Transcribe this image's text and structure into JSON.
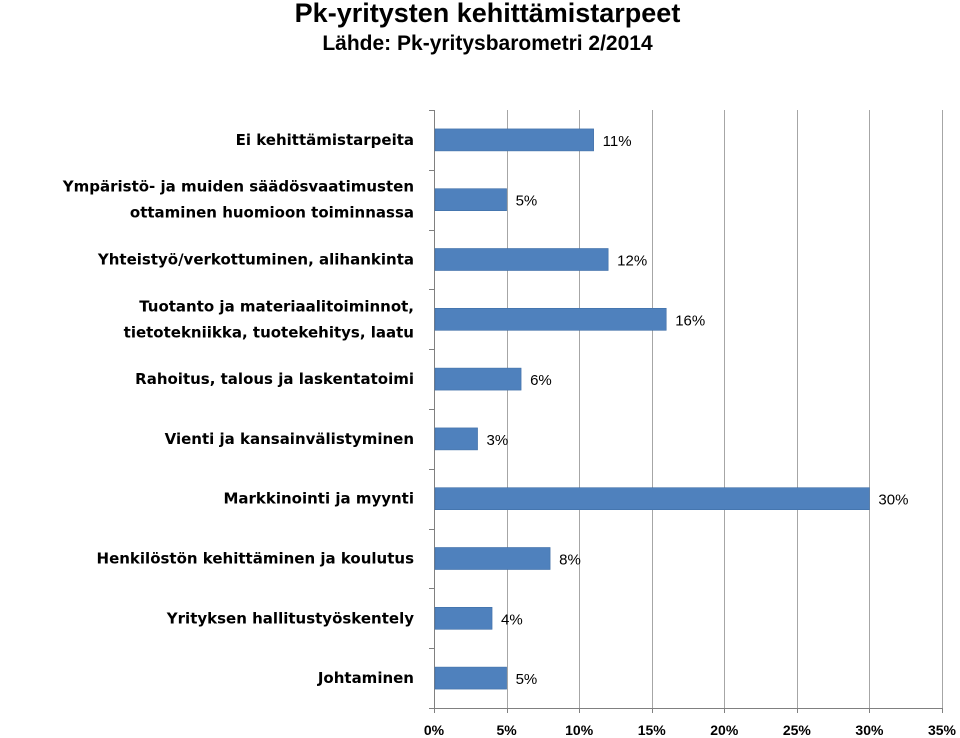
{
  "header": {
    "title": "Pk-yritysten kehittämistarpeet",
    "subtitle": "Lähde: Pk-yritysbarometri 2/2014"
  },
  "colors": {
    "bar": "#4F81BD",
    "bar_stroke": "#3F6EA6",
    "grid": "#A6A6A6",
    "axis": "#808080"
  },
  "chart_data": {
    "type": "bar",
    "orientation": "horizontal",
    "title": "Pk-yritysten kehittämistarpeet",
    "subtitle": "Lähde: Pk-yritysbarometri 2/2014",
    "categories": [
      [
        "Ei kehittämistarpeita"
      ],
      [
        "Ympäristö- ja muiden säädösvaatimusten",
        "ottaminen huomioon toiminnassa"
      ],
      [
        "Yhteistyö/verkottuminen, alihankinta"
      ],
      [
        "Tuotanto ja materiaalitoiminnot,",
        "tietotekniikka, tuotekehitys, laatu"
      ],
      [
        "Rahoitus, talous ja laskentatoimi"
      ],
      [
        "Vienti ja kansainvälistyminen"
      ],
      [
        "Markkinointi ja myynti"
      ],
      [
        "Henkilöstön kehittäminen ja koulutus"
      ],
      [
        "Yrityksen hallitustyöskentely"
      ],
      [
        "Johtaminen"
      ]
    ],
    "values": [
      11,
      5,
      12,
      16,
      6,
      3,
      30,
      8,
      4,
      5
    ],
    "value_labels": [
      "11%",
      "5%",
      "12%",
      "16%",
      "6%",
      "3%",
      "30%",
      "8%",
      "4%",
      "5%"
    ],
    "xlim": [
      0,
      35
    ],
    "xticks": [
      0,
      5,
      10,
      15,
      20,
      25,
      30,
      35
    ],
    "xtick_labels": [
      "0%",
      "5%",
      "10%",
      "15%",
      "20%",
      "25%",
      "30%",
      "35%"
    ],
    "xlabel": "",
    "ylabel": "",
    "grid": true,
    "legend": "none"
  }
}
